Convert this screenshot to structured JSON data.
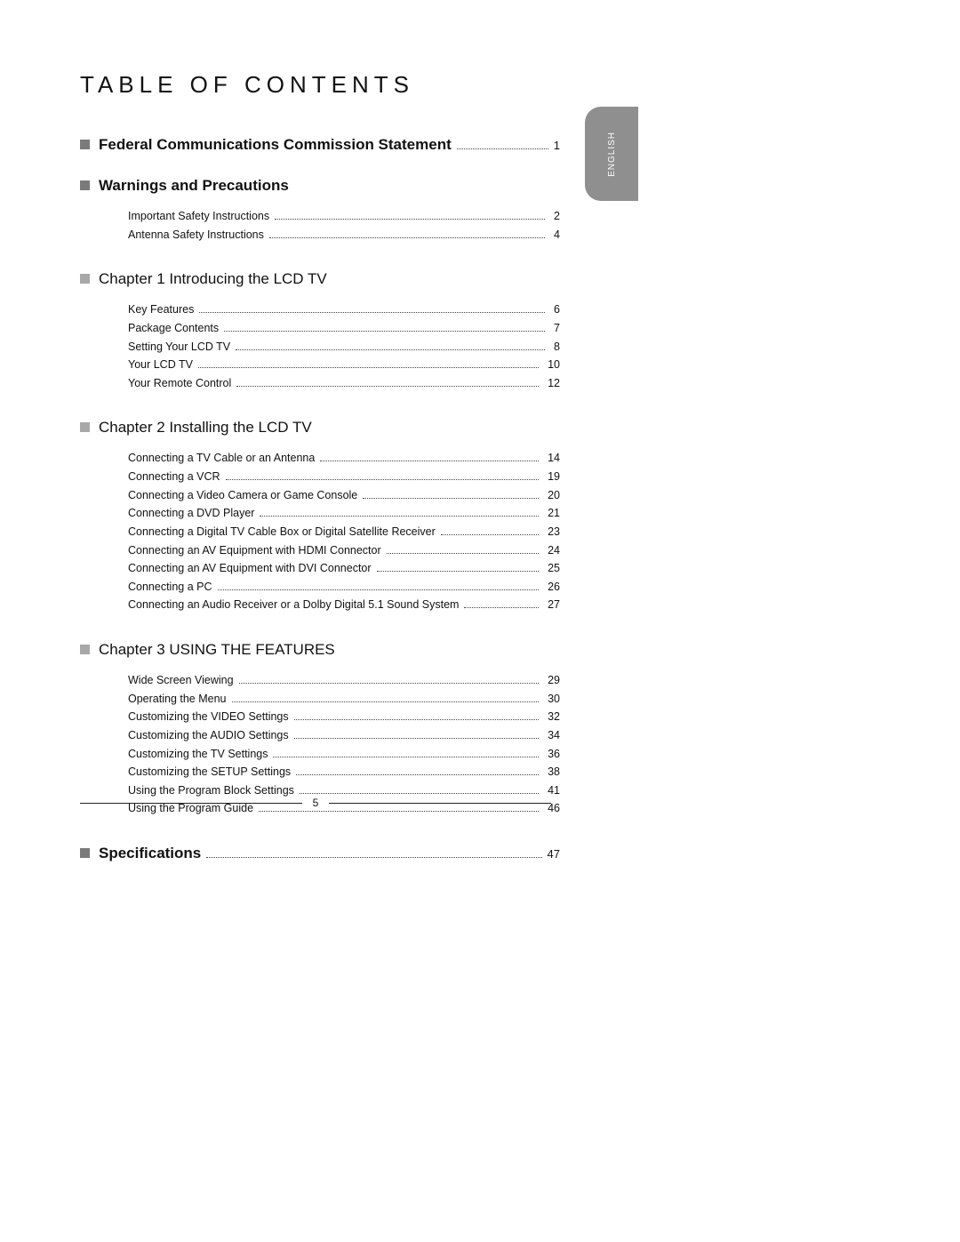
{
  "title": "TABLE OF CONTENTS",
  "language_tab": "ENGLISH",
  "page_number": "5",
  "sections": [
    {
      "bullet": "dark",
      "bold": true,
      "has_leader": true,
      "title": "Federal Communications Commission Statement",
      "page": "1",
      "items": []
    },
    {
      "bullet": "dark",
      "bold": true,
      "has_leader": false,
      "title": "Warnings and Precautions",
      "page": "",
      "items": [
        {
          "label": "Important Safety Instructions",
          "page": "2"
        },
        {
          "label": "Antenna Safety Instructions",
          "page": "4"
        }
      ]
    },
    {
      "bullet": "light",
      "bold": false,
      "has_leader": false,
      "title": "Chapter 1 Introducing the LCD TV",
      "page": "",
      "items": [
        {
          "label": "Key Features",
          "page": "6"
        },
        {
          "label": "Package Contents",
          "page": "7"
        },
        {
          "label": "Setting Your LCD TV",
          "page": "8"
        },
        {
          "label": "Your LCD TV",
          "page": "10"
        },
        {
          "label": "Your Remote Control",
          "page": "12"
        }
      ]
    },
    {
      "bullet": "light",
      "bold": false,
      "has_leader": false,
      "title": "Chapter 2 Installing the LCD TV",
      "page": "",
      "items": [
        {
          "label": "Connecting a TV Cable or an Antenna",
          "page": "14"
        },
        {
          "label": "Connecting a VCR",
          "page": "19"
        },
        {
          "label": "Connecting a Video Camera or Game Console",
          "page": "20"
        },
        {
          "label": "Connecting a DVD Player",
          "page": "21"
        },
        {
          "label": "Connecting a Digital TV Cable Box or Digital Satellite Receiver",
          "page": "23"
        },
        {
          "label": "Connecting an AV Equipment with HDMI Connector",
          "page": "24"
        },
        {
          "label": "Connecting an AV Equipment with DVI Connector",
          "page": "25"
        },
        {
          "label": "Connecting a PC",
          "page": "26"
        },
        {
          "label": "Connecting an Audio Receiver or a Dolby Digital 5.1 Sound System",
          "page": "27"
        }
      ]
    },
    {
      "bullet": "light",
      "bold": false,
      "has_leader": false,
      "title": "Chapter 3 USING THE FEATURES",
      "page": "",
      "items": [
        {
          "label": "Wide Screen Viewing",
          "page": "29"
        },
        {
          "label": "Operating the Menu",
          "page": "30"
        },
        {
          "label": "Customizing the VIDEO Settings",
          "page": "32"
        },
        {
          "label": "Customizing the AUDIO Settings",
          "page": "34"
        },
        {
          "label": "Customizing the TV Settings",
          "page": "36"
        },
        {
          "label": "Customizing the SETUP Settings",
          "page": "38"
        },
        {
          "label": "Using the Program Block Settings",
          "page": "41"
        },
        {
          "label": "Using the Program Guide",
          "page": "46"
        }
      ]
    },
    {
      "bullet": "dark",
      "bold": true,
      "has_leader": true,
      "title": "Specifications",
      "page": "47",
      "items": []
    }
  ]
}
